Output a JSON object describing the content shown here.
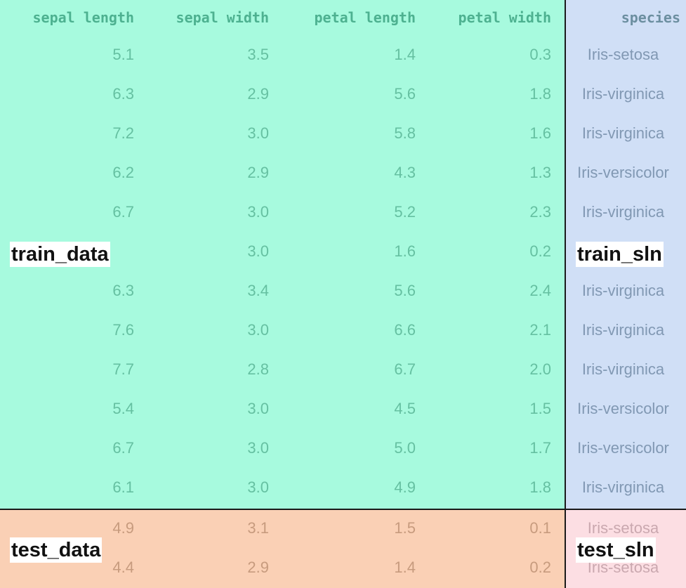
{
  "table": {
    "columns": [
      "sepal length",
      "sepal width",
      "petal length",
      "petal width",
      "species"
    ],
    "rows": [
      [
        "5.1",
        "3.5",
        "1.4",
        "0.3",
        "Iris-setosa"
      ],
      [
        "6.3",
        "2.9",
        "5.6",
        "1.8",
        "Iris-virginica"
      ],
      [
        "7.2",
        "3.0",
        "5.8",
        "1.6",
        "Iris-virginica"
      ],
      [
        "6.2",
        "2.9",
        "4.3",
        "1.3",
        "Iris-versicolor"
      ],
      [
        "6.7",
        "3.0",
        "5.2",
        "2.3",
        "Iris-virginica"
      ],
      [
        "",
        "3.0",
        "1.6",
        "0.2",
        ""
      ],
      [
        "6.3",
        "3.4",
        "5.6",
        "2.4",
        "Iris-virginica"
      ],
      [
        "7.6",
        "3.0",
        "6.6",
        "2.1",
        "Iris-virginica"
      ],
      [
        "7.7",
        "2.8",
        "6.7",
        "2.0",
        "Iris-virginica"
      ],
      [
        "5.4",
        "3.0",
        "4.5",
        "1.5",
        "Iris-versicolor"
      ],
      [
        "6.7",
        "3.0",
        "5.0",
        "1.7",
        "Iris-versicolor"
      ],
      [
        "6.1",
        "3.0",
        "4.9",
        "1.8",
        "Iris-virginica"
      ],
      [
        "4.9",
        "3.1",
        "1.5",
        "0.1",
        "Iris-setosa"
      ],
      [
        "4.4",
        "2.9",
        "1.4",
        "0.2",
        "Iris-setosa"
      ]
    ]
  },
  "regions": {
    "train_data": "train_data",
    "train_sln": "train_sln",
    "test_data": "test_data",
    "test_sln": "test_sln"
  },
  "colors": {
    "train_data": "#50f5be",
    "train_sln": "#96b9eb",
    "test_data": "#f5aa78",
    "test_sln": "#fabec8",
    "divider": "#1a1a1a"
  }
}
